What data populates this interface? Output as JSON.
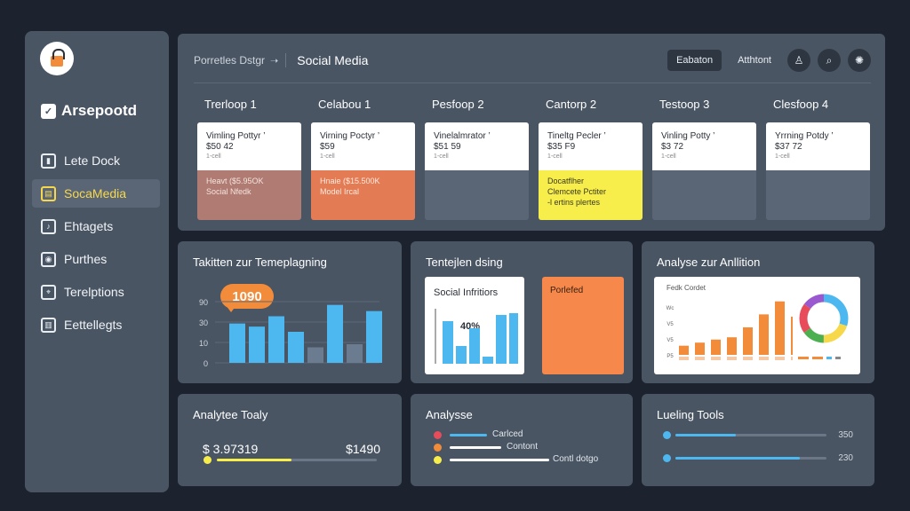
{
  "sidebar": {
    "brand": "Arsepootd",
    "items": [
      {
        "label": "Lete Dock",
        "icon": "folder-icon",
        "glyph": "▮"
      },
      {
        "label": "SocaMedia",
        "icon": "clipboard-icon",
        "glyph": "▤"
      },
      {
        "label": "Ehtagets",
        "icon": "music-icon",
        "glyph": "♪"
      },
      {
        "label": "Purthes",
        "icon": "camera-icon",
        "glyph": "◉"
      },
      {
        "label": "Terelptions",
        "icon": "location-pin-icon",
        "glyph": "⌖"
      },
      {
        "label": "Eettellegts",
        "icon": "chart-icon",
        "glyph": "▥"
      }
    ]
  },
  "header": {
    "breadcrumb": "Porretles Dstgr",
    "title": "Social Media",
    "btn1": "Eabaton",
    "btn2": "Atthtont"
  },
  "columns": [
    {
      "head": "Trerloop 1",
      "t1": "Vimling Pottyr ’",
      "t2": "$50 42",
      "t3": "1-cell",
      "bottom": [
        "Heavt ($5.95OK",
        "Social Nfedk"
      ],
      "bg": "#b07b73",
      "fg": "#f3e3dc"
    },
    {
      "head": "Celabou 1",
      "t1": "Virning Poctyr ’",
      "t2": "$59",
      "t3": "1-cell",
      "bottom": [
        "Hnaie ($15.500K",
        "Model Ircal"
      ],
      "bg": "#e37c55",
      "fg": "#ffe9de"
    },
    {
      "head": "Pesfoop 2",
      "t1": "Vinelalmrator ’",
      "t2": "$51 59",
      "t3": "1-cell",
      "bottom": [],
      "bg": "#5a6676",
      "fg": "#fff"
    },
    {
      "head": "Cantorp 2",
      "t1": "Tineltg Pecler ’",
      "t2": "$35 F9",
      "t3": "1-cell",
      "bottom": [
        "Docatflher",
        "Clemcete Pctiter",
        "-l ertins plertes"
      ],
      "bg": "#f7ee4c",
      "fg": "#3a3a20"
    },
    {
      "head": "Testoop 3",
      "t1": "Vinling Potty ’",
      "t2": "$3 72",
      "t3": "1-cell",
      "bottom": [],
      "bg": "#5a6676",
      "fg": "#fff"
    },
    {
      "head": "Clesfoop 4",
      "t1": "Yrrning Potdy ’",
      "t2": "$37 72",
      "t3": "1-cell",
      "bottom": [],
      "bg": "#5a6676",
      "fg": "#fff"
    }
  ],
  "panels": {
    "p1": {
      "title": "Takitten zur Temeplagning",
      "bubble": "1090",
      "yticks": [
        "90",
        "30",
        "10",
        "0"
      ]
    },
    "p2": {
      "title": "Tentejlen dsing",
      "card_title": "Social Infritiors",
      "card_value": "40%",
      "orange_label": "Porlefed"
    },
    "p3": {
      "title": "Analyse zur Anllition",
      "card_title": "Fedk Cordet",
      "yticks": [
        "Wc",
        "V5",
        "V5",
        "P5"
      ]
    },
    "p4": {
      "title": "Analytee Toaly",
      "left_value": "$ 3.97319",
      "right_value": "$1490"
    },
    "p5": {
      "title": "Analysse",
      "items": [
        "Carlced",
        "Contont",
        "Contl dotgo"
      ]
    },
    "p6": {
      "title": "Lueling Tools",
      "items": [
        {
          "value": "350"
        },
        {
          "value": "230"
        }
      ]
    }
  },
  "chart_data": [
    {
      "type": "bar",
      "title": "Takitten zur Temeplagning",
      "yticks": [
        "90",
        "30",
        "10",
        "0"
      ],
      "values": [
        38,
        35,
        45,
        30,
        15,
        56,
        18,
        50
      ],
      "colors": [
        "#4db8f0",
        "#4db8f0",
        "#4db8f0",
        "#4db8f0",
        "#6b7c90",
        "#4db8f0",
        "#6b7c90",
        "#4db8f0"
      ]
    },
    {
      "type": "bar",
      "title": "Social Infritiors",
      "values": [
        48,
        20,
        40,
        8,
        55,
        57
      ],
      "colors": [
        "#4db8f0",
        "#4db8f0",
        "#4db8f0",
        "#4db8f0",
        "#4db8f0",
        "#4db8f0"
      ]
    },
    {
      "type": "bar",
      "title": "Fedk Cordet",
      "values": [
        12,
        16,
        20,
        23,
        36,
        53,
        70,
        50
      ],
      "colors": [
        "#f28b3a",
        "#f28b3a",
        "#f28b3a",
        "#f28b3a",
        "#f28b3a",
        "#f28b3a",
        "#f28b3a",
        "#f28b3a"
      ]
    },
    {
      "type": "pie",
      "title": "",
      "values": [
        30,
        20,
        15,
        20,
        15
      ],
      "colors": [
        "#4db8f0",
        "#f7d84a",
        "#4caf50",
        "#e84b5a",
        "#9b59d0"
      ]
    }
  ],
  "colors": {
    "accent": "#f6d84a",
    "blue": "#4db8f0",
    "orange": "#f28b3a"
  }
}
